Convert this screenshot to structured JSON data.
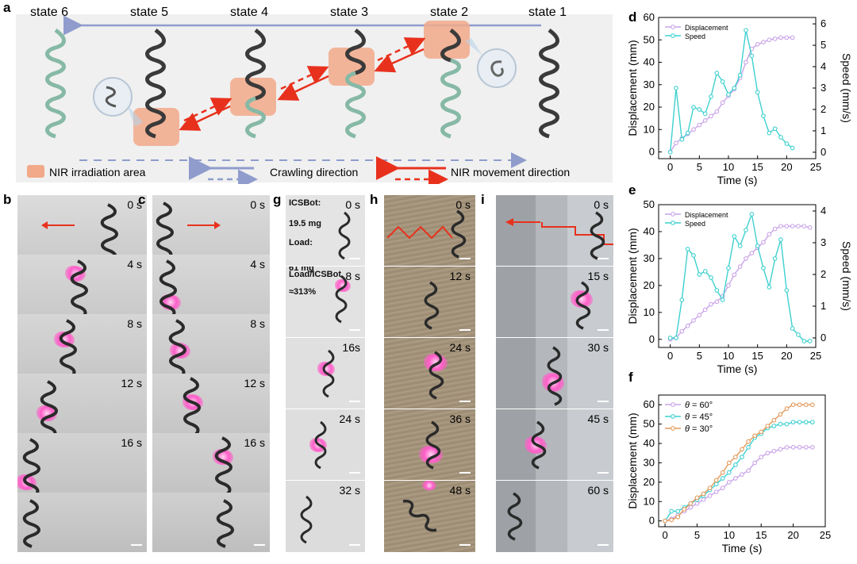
{
  "panel_labels": {
    "a": "a",
    "b": "b",
    "c": "c",
    "d": "d",
    "e": "e",
    "f": "f",
    "g": "g",
    "h": "h",
    "i": "i"
  },
  "schematic": {
    "states": [
      "state 6",
      "state 5",
      "state 4",
      "state 3",
      "state 2",
      "state 1"
    ],
    "legend": {
      "nir_area": "NIR irradiation area",
      "crawling": "Crawling direction",
      "nir_movement": "NIR movement direction"
    },
    "colors": {
      "nir": "#f2a98a",
      "arrow_red": "#e8311d",
      "arrow_blue": "#8f9ccc",
      "helix_dark": "#3a3a3a",
      "helix_green": "#86b9a6",
      "bg": "#f0f0f0"
    }
  },
  "photos": {
    "b": {
      "times": [
        "0 s",
        "4 s",
        "8 s",
        "12 s",
        "16 s",
        ""
      ]
    },
    "c": {
      "times": [
        "0 s",
        "4 s",
        "8 s",
        "12 s",
        "16 s",
        ""
      ]
    },
    "g": {
      "times": [
        "0 s",
        "8 s",
        "16s",
        "24 s",
        "32 s"
      ],
      "annotations": {
        "bot": "ICSBot:",
        "bot_mass": "19.5 mg",
        "load": "Load:",
        "load_mass": "61 mg",
        "ratio": "Load/ICSBot",
        "ratio_val": "≈313%"
      }
    },
    "h": {
      "times": [
        "0 s",
        "12 s",
        "24 s",
        "36 s",
        "48 s"
      ]
    },
    "i": {
      "times": [
        "0 s",
        "15 s",
        "30 s",
        "45 s",
        "60 s"
      ]
    }
  },
  "chart_data": [
    {
      "panel": "d",
      "type": "line",
      "xlabel": "Time (s)",
      "ylabel": "Displacement (mm)",
      "y2label": "Speed (mm/s)",
      "xlim": [
        -2,
        25
      ],
      "ylim": [
        -3,
        60
      ],
      "y2lim": [
        -0.3,
        6.3
      ],
      "xticks": [
        "0",
        "5",
        "10",
        "15",
        "20",
        "25"
      ],
      "xtick_values": [
        0,
        5,
        10,
        15,
        20,
        25
      ],
      "yticks": [
        "0",
        "10",
        "20",
        "30",
        "40",
        "50",
        "60"
      ],
      "ytick_values": [
        0,
        10,
        20,
        30,
        40,
        50,
        60
      ],
      "y2ticks": [
        "0",
        "1",
        "2",
        "3",
        "4",
        "5",
        "6"
      ],
      "y2tick_values": [
        0,
        1,
        2,
        3,
        4,
        5,
        6
      ],
      "series": [
        {
          "name": "Displacement",
          "axis": "left",
          "color": "#c9a3e8",
          "x": [
            0,
            1,
            2,
            3,
            4,
            5,
            6,
            7,
            8,
            9,
            10,
            11,
            12,
            13,
            14,
            15,
            16,
            17,
            18,
            19,
            20,
            21
          ],
          "y": [
            0,
            4,
            6,
            8,
            10,
            12,
            14,
            16,
            18,
            22,
            25,
            28,
            33,
            40,
            46,
            48,
            49,
            50,
            50.5,
            51,
            51,
            51
          ]
        },
        {
          "name": "Speed",
          "axis": "right",
          "color": "#3fd0d0",
          "x": [
            0,
            1,
            2,
            3,
            4,
            5,
            6,
            7,
            8,
            9,
            10,
            11,
            12,
            13,
            14,
            15,
            16,
            17,
            18,
            19,
            20,
            21
          ],
          "y": [
            0,
            3.0,
            0.6,
            0.9,
            2.1,
            2.0,
            1.8,
            2.6,
            3.7,
            3.3,
            2.7,
            3.0,
            3.6,
            5.7,
            4.5,
            2.8,
            1.7,
            0.9,
            1.1,
            0.7,
            0.4,
            0.2
          ]
        }
      ]
    },
    {
      "panel": "e",
      "type": "line",
      "xlabel": "Time (s)",
      "ylabel": "Displacement (mm)",
      "y2label": "Speed (mm/s)",
      "xlim": [
        -2,
        25
      ],
      "ylim": [
        -3,
        50
      ],
      "y2lim": [
        -0.3,
        4.2
      ],
      "xticks": [
        "0",
        "5",
        "10",
        "15",
        "20",
        "25"
      ],
      "xtick_values": [
        0,
        5,
        10,
        15,
        20,
        25
      ],
      "yticks": [
        "0",
        "10",
        "20",
        "30",
        "40",
        "50"
      ],
      "ytick_values": [
        0,
        10,
        20,
        30,
        40,
        50
      ],
      "y2ticks": [
        "0",
        "1",
        "2",
        "3",
        "4"
      ],
      "y2tick_values": [
        0,
        1,
        2,
        3,
        4
      ],
      "series": [
        {
          "name": "Displacement",
          "axis": "left",
          "color": "#c9a3e8",
          "x": [
            0,
            1,
            2,
            3,
            4,
            5,
            6,
            7,
            8,
            9,
            10,
            11,
            12,
            13,
            14,
            15,
            16,
            17,
            18,
            19,
            20,
            21,
            22,
            23,
            24
          ],
          "y": [
            0,
            0.5,
            3,
            5,
            7,
            9,
            11,
            13,
            14,
            16,
            20,
            24,
            27,
            30,
            32,
            34,
            36,
            39,
            41,
            42,
            42,
            42,
            42,
            42,
            41.5
          ]
        },
        {
          "name": "Speed",
          "axis": "right",
          "color": "#3fd0d0",
          "x": [
            0,
            1,
            2,
            3,
            4,
            5,
            6,
            7,
            8,
            9,
            10,
            11,
            12,
            13,
            14,
            15,
            16,
            17,
            18,
            19,
            20,
            21,
            22,
            23,
            24
          ],
          "y": [
            0,
            0,
            1.2,
            2.8,
            2.6,
            2.0,
            2.1,
            1.9,
            1.5,
            1.2,
            2.2,
            3.2,
            2.9,
            3.4,
            3.9,
            2.9,
            2.2,
            1.6,
            2.5,
            3.1,
            1.5,
            0.3,
            0.1,
            -0.1,
            -0.1
          ]
        }
      ]
    },
    {
      "panel": "f",
      "type": "line",
      "xlabel": "Time (s)",
      "ylabel": "Displacement (mm)",
      "xlim": [
        -1,
        25
      ],
      "ylim": [
        -3,
        65
      ],
      "xticks": [
        "0",
        "5",
        "10",
        "15",
        "20",
        "25"
      ],
      "xtick_values": [
        0,
        5,
        10,
        15,
        20,
        25
      ],
      "yticks": [
        "0",
        "10",
        "20",
        "30",
        "40",
        "50",
        "60"
      ],
      "ytick_values": [
        0,
        10,
        20,
        30,
        40,
        50,
        60
      ],
      "series": [
        {
          "name": "θ = 60°",
          "sym": "θ",
          "rest": " = 60°",
          "color": "#c9a3e8",
          "x": [
            0,
            1,
            2,
            3,
            4,
            5,
            6,
            7,
            8,
            9,
            10,
            11,
            12,
            13,
            14,
            15,
            16,
            17,
            18,
            19,
            20,
            21,
            22,
            23
          ],
          "y": [
            0,
            1,
            3,
            5,
            7,
            9,
            11,
            13,
            15,
            17,
            20,
            22,
            24,
            26,
            30,
            33,
            35,
            36,
            37,
            38,
            38,
            38,
            38,
            38
          ]
        },
        {
          "name": "θ = 45°",
          "sym": "θ",
          "rest": " = 45°",
          "color": "#3fd0d0",
          "x": [
            0,
            1,
            2,
            3,
            4,
            5,
            6,
            7,
            8,
            9,
            10,
            11,
            12,
            13,
            14,
            15,
            16,
            17,
            18,
            19,
            20,
            21,
            22,
            23
          ],
          "y": [
            0,
            5,
            5,
            7,
            9,
            11,
            13,
            16,
            19,
            22,
            25,
            29,
            33,
            38,
            43,
            45,
            48,
            49,
            50,
            50,
            51,
            51,
            51,
            51
          ]
        },
        {
          "name": "θ = 30°",
          "sym": "θ",
          "rest": " = 30°",
          "color": "#e39a5a",
          "x": [
            0,
            1,
            2,
            3,
            4,
            5,
            6,
            7,
            8,
            9,
            10,
            11,
            12,
            13,
            14,
            15,
            16,
            17,
            18,
            19,
            20,
            21,
            22,
            23
          ],
          "y": [
            0,
            0.5,
            2,
            6,
            9,
            12,
            14,
            17,
            21,
            25,
            30,
            33,
            37,
            41,
            44,
            46,
            49,
            52,
            55,
            58,
            60,
            60,
            60,
            60
          ]
        }
      ]
    }
  ]
}
